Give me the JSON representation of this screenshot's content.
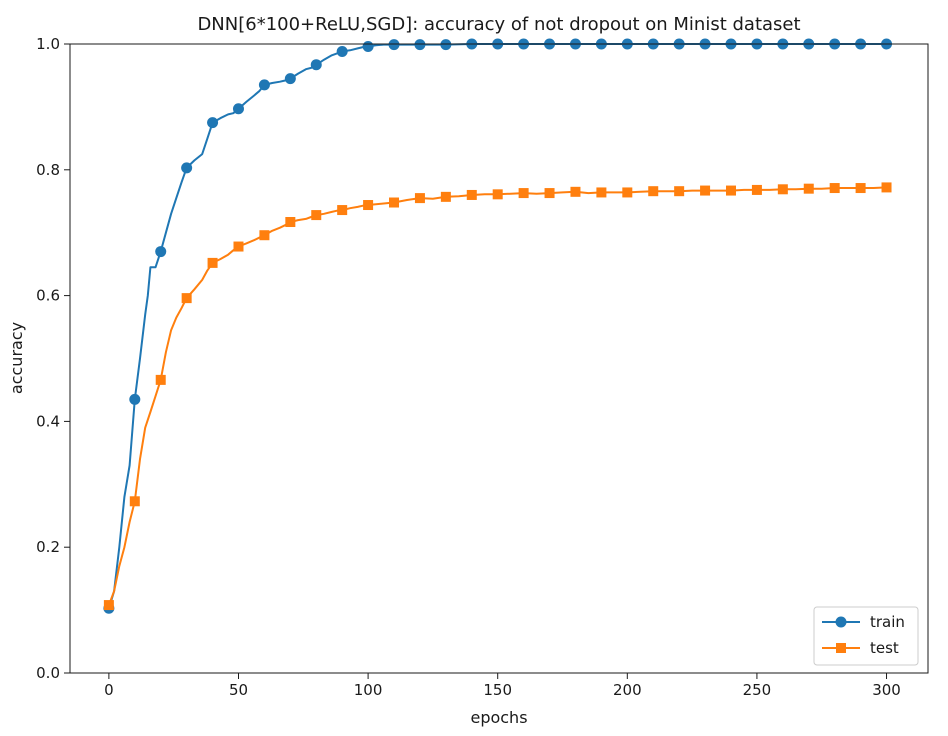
{
  "chart_data": {
    "type": "line",
    "title": "DNN[6*100+ReLU,SGD]: accuracy of not dropout on Minist dataset",
    "xlabel": "epochs",
    "ylabel": "accuracy",
    "xlim": [
      -15,
      316
    ],
    "ylim": [
      0.0,
      1.0
    ],
    "xticks": [
      0,
      50,
      100,
      150,
      200,
      250,
      300
    ],
    "xtick_labels": [
      "0",
      "50",
      "100",
      "150",
      "200",
      "250",
      "300"
    ],
    "yticks": [
      0.0,
      0.2,
      0.4,
      0.6,
      0.8,
      1.0
    ],
    "ytick_labels": [
      "0.0",
      "0.2",
      "0.4",
      "0.6",
      "0.8",
      "1.0"
    ],
    "legend_position": "bottom-right",
    "marker_every": 10,
    "series": [
      {
        "name": "train",
        "color": "#1f77b4",
        "marker": "circle",
        "points": [
          [
            0,
            0.103
          ],
          [
            2,
            0.13
          ],
          [
            4,
            0.2
          ],
          [
            6,
            0.28
          ],
          [
            8,
            0.33
          ],
          [
            10,
            0.435
          ],
          [
            12,
            0.5
          ],
          [
            14,
            0.57
          ],
          [
            15,
            0.6
          ],
          [
            16,
            0.645
          ],
          [
            18,
            0.645
          ],
          [
            20,
            0.67
          ],
          [
            22,
            0.7
          ],
          [
            24,
            0.73
          ],
          [
            26,
            0.755
          ],
          [
            28,
            0.78
          ],
          [
            30,
            0.803
          ],
          [
            33,
            0.815
          ],
          [
            36,
            0.825
          ],
          [
            38,
            0.85
          ],
          [
            40,
            0.875
          ],
          [
            43,
            0.882
          ],
          [
            46,
            0.888
          ],
          [
            48,
            0.89
          ],
          [
            50,
            0.897
          ],
          [
            53,
            0.908
          ],
          [
            56,
            0.918
          ],
          [
            58,
            0.925
          ],
          [
            60,
            0.935
          ],
          [
            63,
            0.938
          ],
          [
            66,
            0.94
          ],
          [
            68,
            0.942
          ],
          [
            70,
            0.945
          ],
          [
            73,
            0.953
          ],
          [
            76,
            0.96
          ],
          [
            78,
            0.962
          ],
          [
            80,
            0.967
          ],
          [
            83,
            0.975
          ],
          [
            86,
            0.982
          ],
          [
            88,
            0.985
          ],
          [
            90,
            0.988
          ],
          [
            93,
            0.99
          ],
          [
            96,
            0.993
          ],
          [
            98,
            0.995
          ],
          [
            100,
            0.996
          ],
          [
            103,
            0.998
          ],
          [
            106,
            0.999
          ],
          [
            110,
            0.999
          ],
          [
            120,
            0.999
          ],
          [
            130,
            0.999
          ],
          [
            140,
            1.0
          ],
          [
            150,
            1.0
          ],
          [
            160,
            1.0
          ],
          [
            170,
            1.0
          ],
          [
            180,
            1.0
          ],
          [
            190,
            1.0
          ],
          [
            200,
            1.0
          ],
          [
            210,
            1.0
          ],
          [
            220,
            1.0
          ],
          [
            230,
            1.0
          ],
          [
            240,
            1.0
          ],
          [
            250,
            1.0
          ],
          [
            260,
            1.0
          ],
          [
            270,
            1.0
          ],
          [
            280,
            1.0
          ],
          [
            290,
            1.0
          ],
          [
            300,
            1.0
          ]
        ],
        "marker_points": [
          [
            0,
            0.103
          ],
          [
            10,
            0.435
          ],
          [
            20,
            0.67
          ],
          [
            30,
            0.803
          ],
          [
            40,
            0.875
          ],
          [
            50,
            0.897
          ],
          [
            60,
            0.935
          ],
          [
            70,
            0.945
          ],
          [
            80,
            0.967
          ],
          [
            90,
            0.988
          ],
          [
            100,
            0.996
          ],
          [
            110,
            0.999
          ],
          [
            120,
            0.999
          ],
          [
            130,
            0.999
          ],
          [
            140,
            1.0
          ],
          [
            150,
            1.0
          ],
          [
            160,
            1.0
          ],
          [
            170,
            1.0
          ],
          [
            180,
            1.0
          ],
          [
            190,
            1.0
          ],
          [
            200,
            1.0
          ],
          [
            210,
            1.0
          ],
          [
            220,
            1.0
          ],
          [
            230,
            1.0
          ],
          [
            240,
            1.0
          ],
          [
            250,
            1.0
          ],
          [
            260,
            1.0
          ],
          [
            270,
            1.0
          ],
          [
            280,
            1.0
          ],
          [
            290,
            1.0
          ],
          [
            300,
            1.0
          ]
        ]
      },
      {
        "name": "test",
        "color": "#ff7f0e",
        "marker": "square",
        "points": [
          [
            0,
            0.108
          ],
          [
            2,
            0.13
          ],
          [
            4,
            0.17
          ],
          [
            6,
            0.2
          ],
          [
            8,
            0.24
          ],
          [
            10,
            0.273
          ],
          [
            12,
            0.34
          ],
          [
            14,
            0.39
          ],
          [
            16,
            0.415
          ],
          [
            18,
            0.44
          ],
          [
            20,
            0.466
          ],
          [
            22,
            0.51
          ],
          [
            24,
            0.545
          ],
          [
            26,
            0.565
          ],
          [
            28,
            0.58
          ],
          [
            30,
            0.596
          ],
          [
            33,
            0.61
          ],
          [
            36,
            0.625
          ],
          [
            38,
            0.64
          ],
          [
            40,
            0.652
          ],
          [
            43,
            0.658
          ],
          [
            46,
            0.665
          ],
          [
            48,
            0.672
          ],
          [
            50,
            0.678
          ],
          [
            53,
            0.683
          ],
          [
            56,
            0.688
          ],
          [
            58,
            0.692
          ],
          [
            60,
            0.696
          ],
          [
            63,
            0.703
          ],
          [
            66,
            0.708
          ],
          [
            68,
            0.712
          ],
          [
            70,
            0.717
          ],
          [
            73,
            0.72
          ],
          [
            76,
            0.722
          ],
          [
            78,
            0.725
          ],
          [
            80,
            0.728
          ],
          [
            83,
            0.73
          ],
          [
            86,
            0.733
          ],
          [
            88,
            0.735
          ],
          [
            90,
            0.736
          ],
          [
            93,
            0.739
          ],
          [
            96,
            0.741
          ],
          [
            98,
            0.743
          ],
          [
            100,
            0.744
          ],
          [
            105,
            0.746
          ],
          [
            110,
            0.748
          ],
          [
            115,
            0.752
          ],
          [
            120,
            0.755
          ],
          [
            125,
            0.754
          ],
          [
            130,
            0.757
          ],
          [
            135,
            0.758
          ],
          [
            140,
            0.76
          ],
          [
            145,
            0.761
          ],
          [
            150,
            0.761
          ],
          [
            155,
            0.762
          ],
          [
            160,
            0.763
          ],
          [
            165,
            0.762
          ],
          [
            170,
            0.763
          ],
          [
            175,
            0.764
          ],
          [
            180,
            0.765
          ],
          [
            185,
            0.763
          ],
          [
            190,
            0.764
          ],
          [
            195,
            0.764
          ],
          [
            200,
            0.764
          ],
          [
            205,
            0.765
          ],
          [
            210,
            0.766
          ],
          [
            215,
            0.766
          ],
          [
            220,
            0.766
          ],
          [
            225,
            0.767
          ],
          [
            230,
            0.767
          ],
          [
            235,
            0.767
          ],
          [
            240,
            0.767
          ],
          [
            245,
            0.768
          ],
          [
            250,
            0.768
          ],
          [
            255,
            0.768
          ],
          [
            260,
            0.769
          ],
          [
            265,
            0.769
          ],
          [
            270,
            0.77
          ],
          [
            275,
            0.77
          ],
          [
            280,
            0.771
          ],
          [
            285,
            0.771
          ],
          [
            290,
            0.771
          ],
          [
            295,
            0.771
          ],
          [
            300,
            0.772
          ]
        ],
        "marker_points": [
          [
            0,
            0.108
          ],
          [
            10,
            0.273
          ],
          [
            20,
            0.466
          ],
          [
            30,
            0.596
          ],
          [
            40,
            0.652
          ],
          [
            50,
            0.678
          ],
          [
            60,
            0.696
          ],
          [
            70,
            0.717
          ],
          [
            80,
            0.728
          ],
          [
            90,
            0.736
          ],
          [
            100,
            0.744
          ],
          [
            110,
            0.748
          ],
          [
            120,
            0.755
          ],
          [
            130,
            0.757
          ],
          [
            140,
            0.76
          ],
          [
            150,
            0.761
          ],
          [
            160,
            0.763
          ],
          [
            170,
            0.763
          ],
          [
            180,
            0.765
          ],
          [
            190,
            0.764
          ],
          [
            200,
            0.764
          ],
          [
            210,
            0.766
          ],
          [
            220,
            0.766
          ],
          [
            230,
            0.767
          ],
          [
            240,
            0.767
          ],
          [
            250,
            0.768
          ],
          [
            260,
            0.769
          ],
          [
            270,
            0.77
          ],
          [
            280,
            0.771
          ],
          [
            290,
            0.771
          ],
          [
            300,
            0.772
          ]
        ]
      }
    ]
  }
}
